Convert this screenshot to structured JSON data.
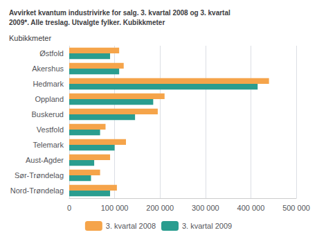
{
  "chart_data": {
    "type": "bar",
    "orientation": "horizontal",
    "title": "Avvirket kvantum industrivirke for salg. 3. kvartal 2008 og 3. kvartal\n2009*. Alle treslag. Utvalgte fylker. Kubikkmeter",
    "ylabel": "Kubikkmeter",
    "categories": [
      "Østfold",
      "Akershus",
      "Hedmark",
      "Oppland",
      "Buskerud",
      "Vestfold",
      "Telemark",
      "Aust-Agder",
      "Sør-Trøndelag",
      "Nord-Trøndelag"
    ],
    "series": [
      {
        "name": "3. kvartal 2008",
        "color": "#f5a44a",
        "values": [
          110000,
          120000,
          440000,
          210000,
          195000,
          80000,
          125000,
          90000,
          68000,
          105000
        ]
      },
      {
        "name": "3. kvartal 2009",
        "color": "#2a9d8f",
        "values": [
          90000,
          110000,
          415000,
          185000,
          145000,
          68000,
          100000,
          55000,
          48000,
          90000
        ]
      }
    ],
    "xlim": [
      0,
      500000
    ],
    "xticks": [
      0,
      {
        "value": 100000,
        "label": "100 000"
      },
      {
        "value": 200000,
        "label": "200 000"
      },
      {
        "value": 300000,
        "label": "300 000"
      },
      {
        "value": 400000,
        "label": "400 000"
      },
      {
        "value": 500000,
        "label": "500 000"
      }
    ],
    "grid": true,
    "legend": "bottom"
  }
}
